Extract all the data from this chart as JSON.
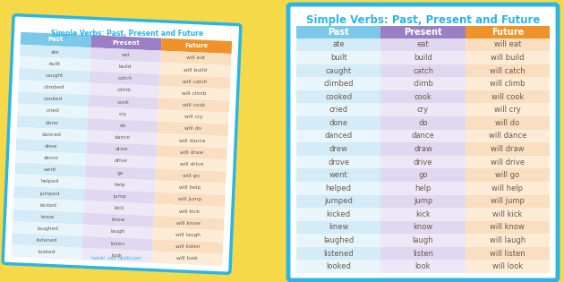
{
  "title": "Simple Verbs: Past, Present and Future",
  "bg_color": "#f5d949",
  "card_bg": "#ffffff",
  "card_border": "#29b5e8",
  "header_past_bg": "#7bc8e8",
  "header_present_bg": "#9b7fc5",
  "header_future_bg": "#f0922a",
  "row_past_bg_even": "#d4ecf7",
  "row_past_bg_odd": "#e8f5fb",
  "row_present_bg_even": "#e0d8f0",
  "row_present_bg_odd": "#ede8f7",
  "row_future_bg_even": "#f9dfc0",
  "row_future_bg_odd": "#fcebd5",
  "header_text_color": "#ffffff",
  "title_color": "#29b5e8",
  "data_text_color": "#6b5a4e",
  "rows": [
    [
      "ate",
      "eat",
      "will eat"
    ],
    [
      "built",
      "build",
      "will build"
    ],
    [
      "caught",
      "catch",
      "will catch"
    ],
    [
      "climbed",
      "climb",
      "will climb"
    ],
    [
      "cooked",
      "cook",
      "will cook"
    ],
    [
      "cried",
      "cry",
      "will cry"
    ],
    [
      "done",
      "do",
      "will do"
    ],
    [
      "danced",
      "dance",
      "will dance"
    ],
    [
      "drew",
      "draw",
      "will draw"
    ],
    [
      "drove",
      "drive",
      "will drive"
    ],
    [
      "went",
      "go",
      "will go"
    ],
    [
      "helped",
      "help",
      "will help"
    ],
    [
      "jumped",
      "jump",
      "will jump"
    ],
    [
      "kicked",
      "kick",
      "will kick"
    ],
    [
      "knew",
      "know",
      "will know"
    ],
    [
      "laughed",
      "laugh",
      "will laugh"
    ],
    [
      "listened",
      "listen",
      "will listen"
    ],
    [
      "looked",
      "look",
      "will look"
    ]
  ]
}
